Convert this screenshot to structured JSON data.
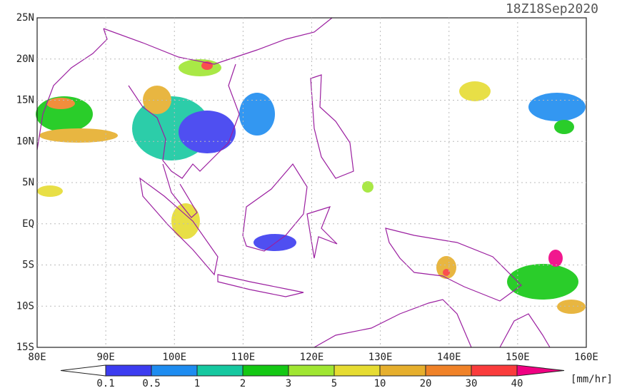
{
  "title": "18Z18Sep2020",
  "map": {
    "lat_labels": [
      "25N",
      "20N",
      "15N",
      "10N",
      "5N",
      "EQ",
      "5S",
      "10S",
      "15S"
    ],
    "lon_labels": [
      "80E",
      "90E",
      "100E",
      "110E",
      "120E",
      "130E",
      "140E",
      "150E",
      "160E"
    ]
  },
  "colorbar": {
    "labels": [
      "0.1",
      "0.5",
      "1",
      "2",
      "3",
      "5",
      "10",
      "20",
      "30",
      "40"
    ],
    "colors": [
      "#ffffff",
      "#3c3cf0",
      "#1e8cf0",
      "#16c8a0",
      "#14c814",
      "#a0e632",
      "#e6dc32",
      "#e6af2d",
      "#f08228",
      "#fa3c3c",
      "#f00082"
    ],
    "unit": "[mm/hr]"
  }
}
